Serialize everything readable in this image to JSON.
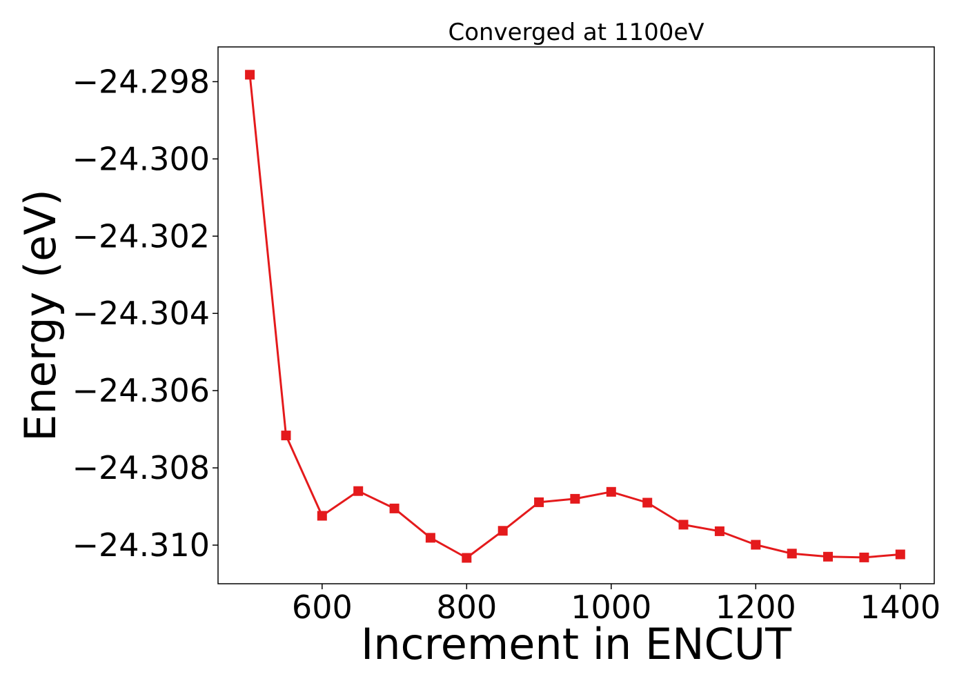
{
  "chart_data": {
    "type": "line",
    "title": "Converged at 1100eV",
    "xlabel": "Increment in ENCUT",
    "ylabel": "Energy (eV)",
    "xlim": [
      456,
      1447
    ],
    "ylim": [
      -24.311,
      -24.2971
    ],
    "xticks": [
      600,
      800,
      1000,
      1200,
      1400
    ],
    "xtick_labels": [
      "600",
      "800",
      "1000",
      "1200",
      "1400"
    ],
    "yticks": [
      -24.298,
      -24.3,
      -24.302,
      -24.304,
      -24.306,
      -24.308,
      -24.31
    ],
    "ytick_labels": [
      "−24.298",
      "−24.300",
      "−24.302",
      "−24.304",
      "−24.306",
      "−24.308",
      "−24.310"
    ],
    "grid": false,
    "marker": "square",
    "series": [
      {
        "color": "#e41a1c",
        "x": [
          500,
          550,
          600,
          650,
          700,
          750,
          800,
          850,
          900,
          950,
          1000,
          1050,
          1100,
          1150,
          1200,
          1250,
          1300,
          1350,
          1400
        ],
        "y": [
          -24.29782,
          -24.30716,
          -24.30924,
          -24.3086,
          -24.30905,
          -24.30981,
          -24.31033,
          -24.30963,
          -24.30889,
          -24.3088,
          -24.30862,
          -24.3089,
          -24.30947,
          -24.30964,
          -24.30999,
          -24.31022,
          -24.3103,
          -24.31032,
          -24.31024
        ]
      }
    ]
  }
}
